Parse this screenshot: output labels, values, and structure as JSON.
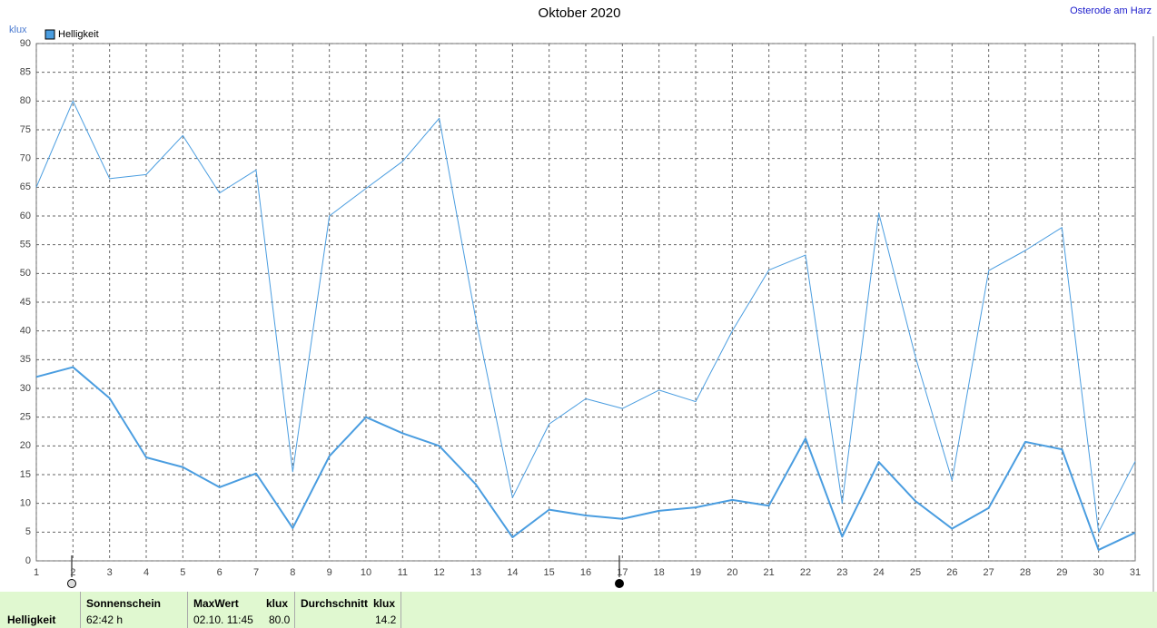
{
  "chart_data": {
    "type": "line",
    "title": "Oktober 2020",
    "station": "Osterode am Harz",
    "y_label": "klux",
    "x": [
      1,
      2,
      3,
      4,
      5,
      6,
      7,
      8,
      9,
      10,
      11,
      12,
      13,
      14,
      15,
      16,
      17,
      18,
      19,
      20,
      21,
      22,
      23,
      24,
      25,
      26,
      27,
      28,
      29,
      30,
      31
    ],
    "xlim": [
      1,
      31
    ],
    "xticks": [
      1,
      2,
      3,
      4,
      5,
      6,
      7,
      8,
      9,
      10,
      11,
      12,
      13,
      14,
      15,
      16,
      17,
      18,
      19,
      20,
      21,
      22,
      23,
      24,
      25,
      26,
      27,
      28,
      29,
      30,
      31
    ],
    "ylim": [
      0,
      90
    ],
    "yticks": [
      0,
      5,
      10,
      15,
      20,
      25,
      30,
      35,
      40,
      45,
      50,
      55,
      60,
      65,
      70,
      75,
      80,
      85,
      90
    ],
    "grid": true,
    "legend": "top-left",
    "series": [
      {
        "name": "Helligkeit",
        "color": "#4a9de0",
        "values": [
          65,
          80,
          66.5,
          67.2,
          74,
          64,
          68,
          15.5,
          60,
          64.8,
          69.5,
          77,
          42,
          11,
          23.8,
          28.2,
          26.5,
          29.7,
          27.7,
          40,
          50.6,
          53.2,
          10,
          60.5,
          35.5,
          14,
          50.5,
          54,
          58,
          5,
          17.3
        ]
      },
      {
        "color": "#4a9de0",
        "values": [
          32,
          33.7,
          28.3,
          18,
          16.3,
          12.8,
          15.2,
          5.7,
          18.2,
          25,
          22.2,
          20,
          13.3,
          4.1,
          8.9,
          7.9,
          7.3,
          8.7,
          9.3,
          10.6,
          9.6,
          21.3,
          4.2,
          17.2,
          10.4,
          5.6,
          9.2,
          20.7,
          19.4,
          1.9,
          4.9
        ]
      }
    ]
  },
  "summary": {
    "row_label": "Helligkeit",
    "columns": [
      {
        "header": "Sonnenschein",
        "value": "62:42 h"
      },
      {
        "header": "MaxWert",
        "unit": "klux",
        "date": "02.10. 11:45",
        "value": "80.0"
      },
      {
        "header": "Durchschnitt",
        "unit": "klux",
        "value": "14.2"
      }
    ]
  }
}
